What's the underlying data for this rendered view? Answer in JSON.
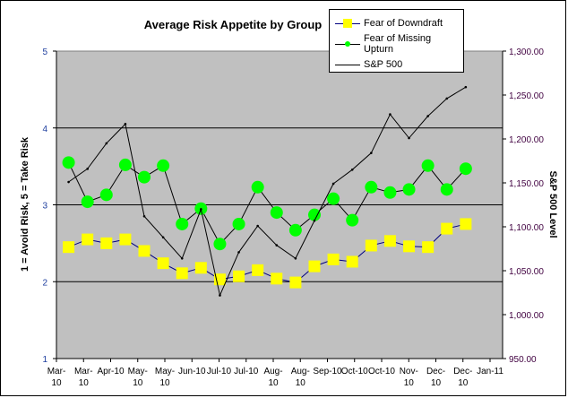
{
  "chart_data": {
    "type": "line",
    "title": "Average Risk Appetite by Group",
    "ylabel": "1 = Avoid Risk, 5 = Take Risk",
    "y2label": "S&P 500 Level",
    "ylim": [
      1,
      5
    ],
    "yticks": [
      "1",
      "2",
      "3",
      "4",
      "5"
    ],
    "y2lim": [
      950,
      1300
    ],
    "y2ticks": [
      "950.00",
      "1,000.00",
      "1,050.00",
      "1,100.00",
      "1,150.00",
      "1,200.00",
      "1,250.00",
      "1,300.00"
    ],
    "xlim": [
      "2010-03-01",
      "2011-01-16"
    ],
    "xticks": [
      "Mar-10",
      "Mar-10",
      "Apr-10",
      "May-10",
      "May-10",
      "Jun-10",
      "Jul-10",
      "Jul-10",
      "Aug-10",
      "Aug-10",
      "Sep-10",
      "Oct-10",
      "Oct-10",
      "Nov-10",
      "Dec-10",
      "Dec-10",
      "Jan-11"
    ],
    "grid": "horizontal major",
    "plot_background": "#c0c0c0",
    "legend": "top-right",
    "x": [
      "2010-03-10",
      "2010-03-24",
      "2010-04-07",
      "2010-04-21",
      "2010-05-05",
      "2010-05-19",
      "2010-06-02",
      "2010-06-16",
      "2010-06-30",
      "2010-07-14",
      "2010-07-28",
      "2010-08-11",
      "2010-08-25",
      "2010-09-08",
      "2010-09-22",
      "2010-10-06",
      "2010-10-20",
      "2010-11-03",
      "2010-11-17",
      "2010-12-01",
      "2010-12-15",
      "2010-12-29"
    ],
    "series": [
      {
        "name": "Fear of Downdraft",
        "axis": "left",
        "color": "#ffff00",
        "line_color": "#000080",
        "marker": "square",
        "values": [
          2.45,
          2.55,
          2.5,
          2.55,
          2.4,
          2.24,
          2.11,
          2.18,
          2.03,
          2.07,
          2.15,
          2.04,
          1.99,
          2.2,
          2.29,
          2.26,
          2.47,
          2.53,
          2.46,
          2.45,
          2.69,
          2.75
        ]
      },
      {
        "name": "Fear of Missing Upturn",
        "axis": "left",
        "color": "#00ff00",
        "line_color": "#000000",
        "marker": "circle",
        "values": [
          3.55,
          3.04,
          3.13,
          3.52,
          3.36,
          3.51,
          2.75,
          2.95,
          2.49,
          2.75,
          3.23,
          2.9,
          2.67,
          2.87,
          3.08,
          2.8,
          3.23,
          3.16,
          3.2,
          3.51,
          3.2,
          3.47
        ]
      },
      {
        "name": "S&P 500",
        "axis": "right",
        "color": "#000000",
        "line_color": "#000000",
        "marker": "dot",
        "values": [
          1151,
          1166,
          1195,
          1217,
          1112,
          1088,
          1064,
          1120,
          1022,
          1071,
          1101,
          1079,
          1064,
          1107,
          1149,
          1165,
          1184,
          1228,
          1201,
          1226,
          1246,
          1259
        ]
      }
    ]
  }
}
